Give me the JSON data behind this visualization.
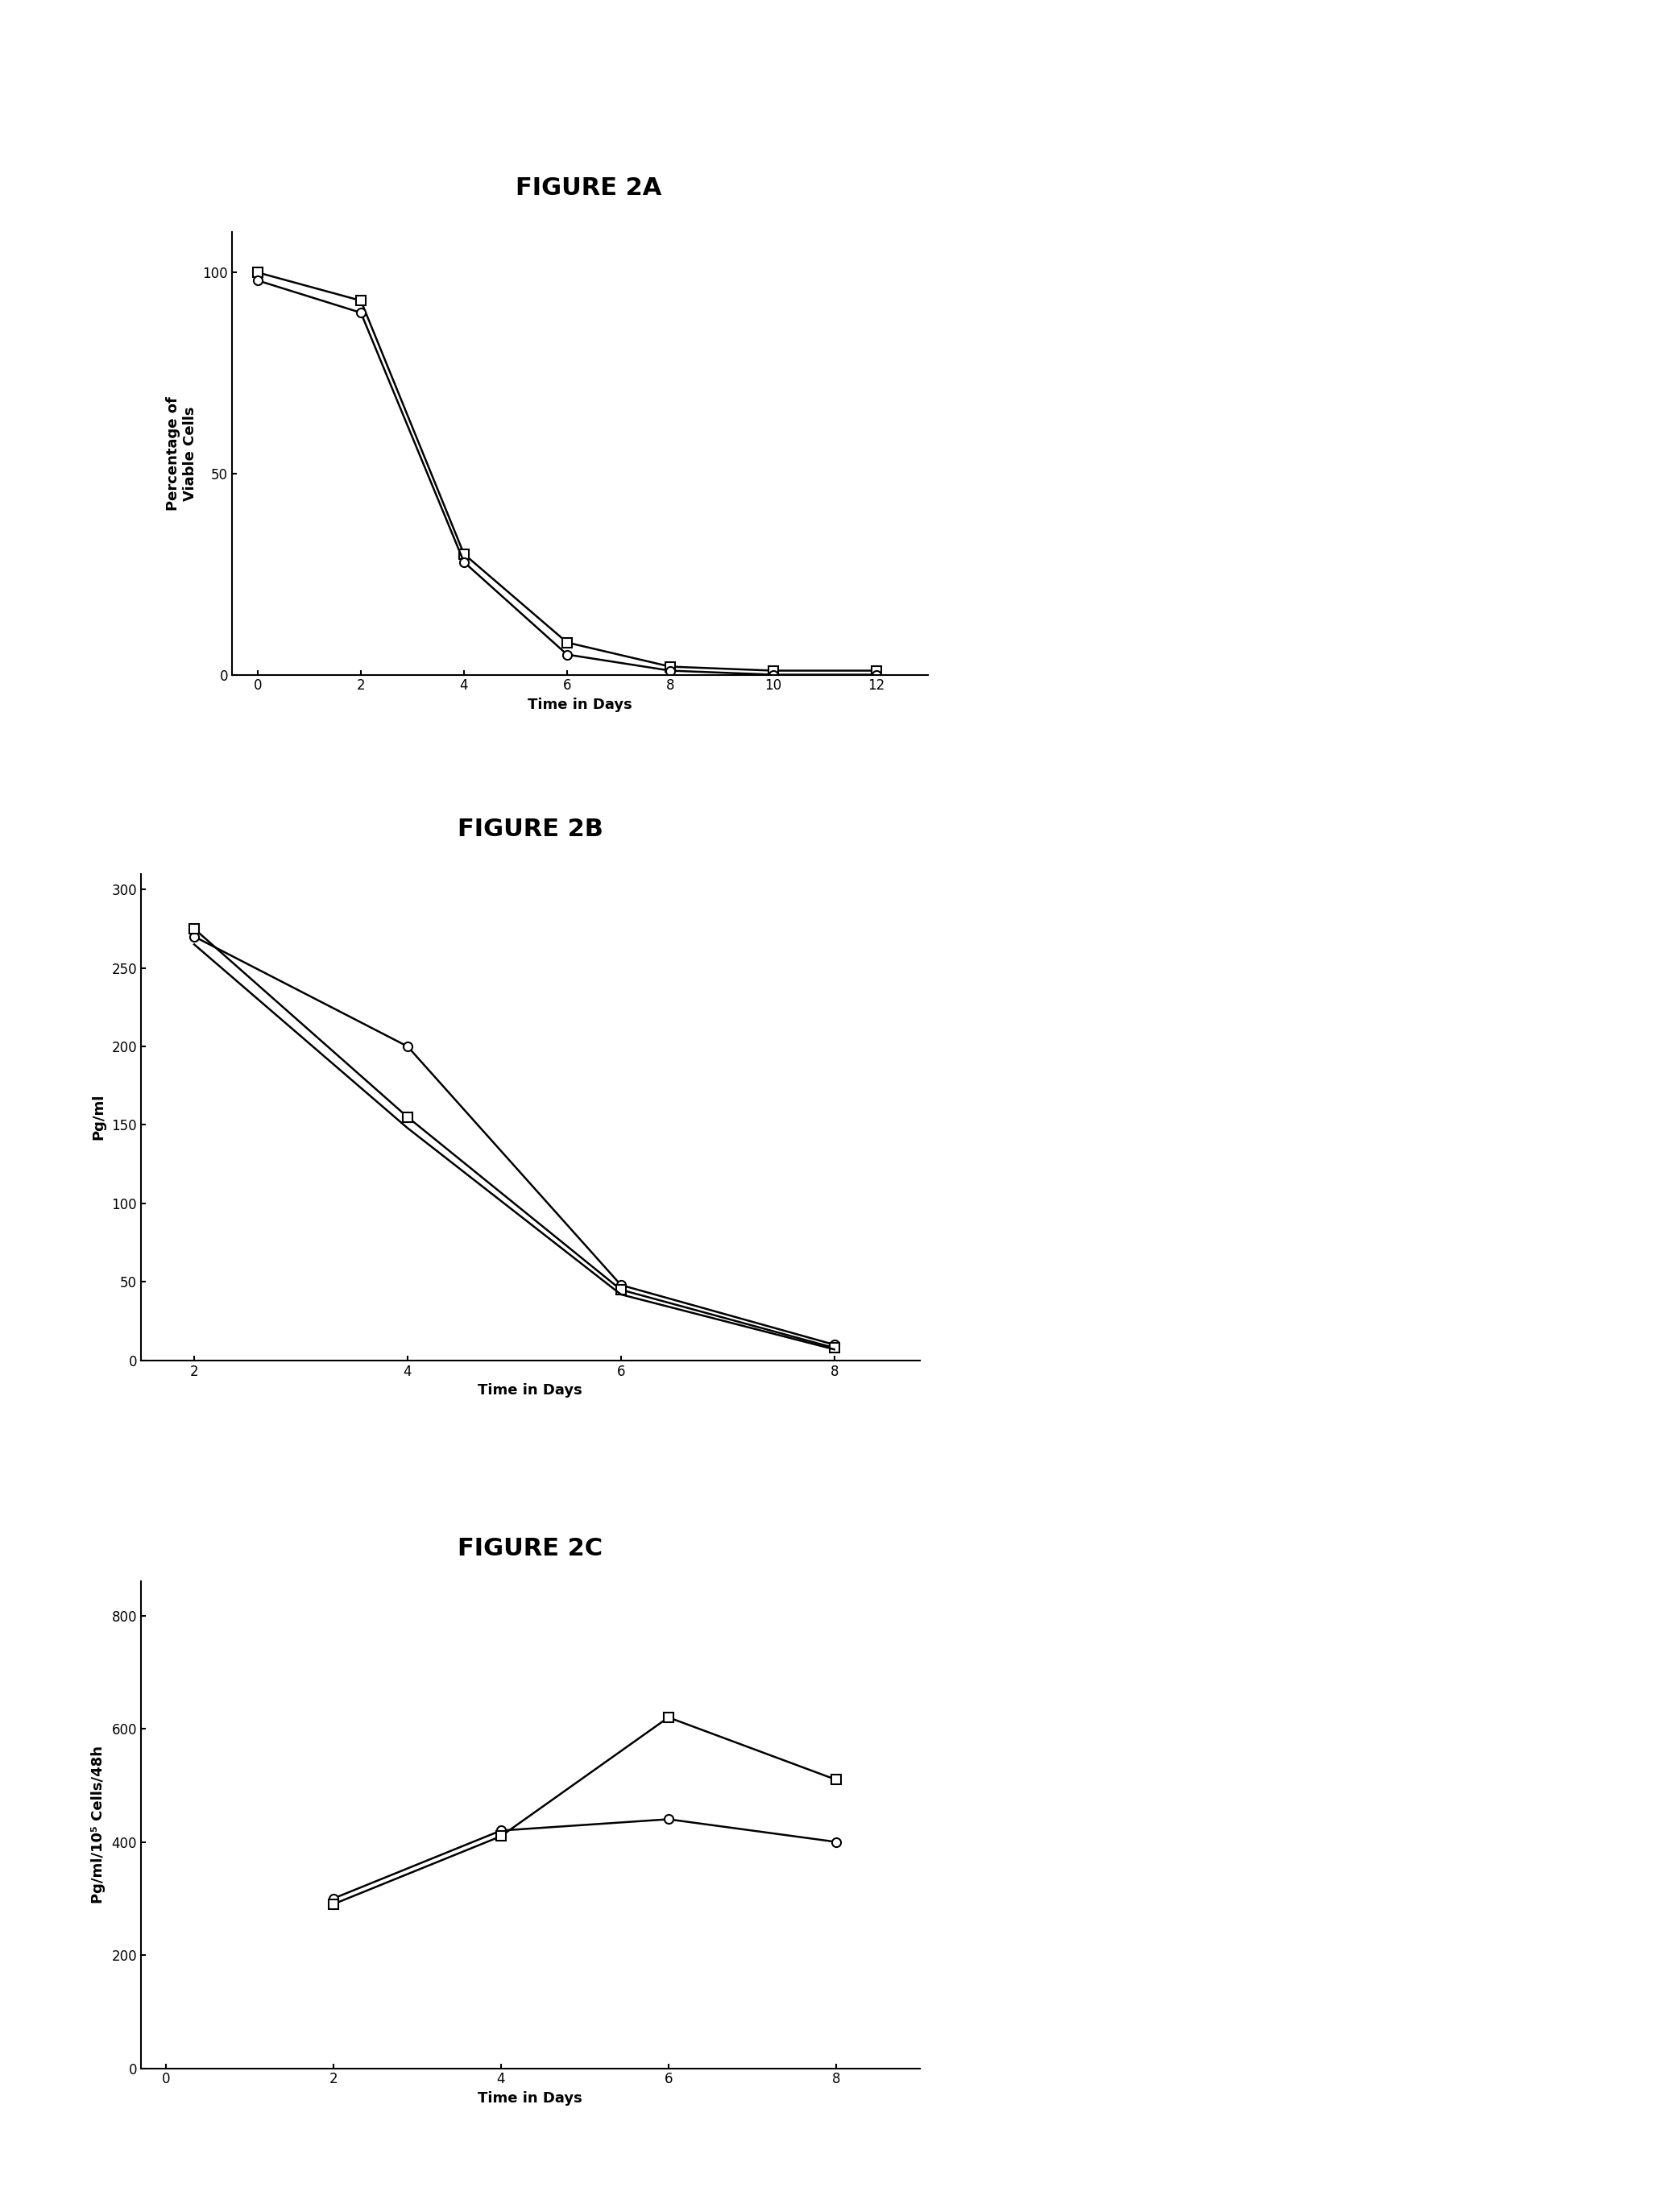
{
  "fig2a": {
    "title": "FIGURE 2A",
    "xlabel": "Time in Days",
    "ylabel": "Percentage of\nViable Cells",
    "series1": {
      "x": [
        0,
        2,
        4,
        6,
        8,
        10,
        12
      ],
      "y": [
        100,
        93,
        30,
        8,
        2,
        1,
        1
      ],
      "marker": "s"
    },
    "series2": {
      "x": [
        0,
        2,
        4,
        6,
        8,
        10,
        12
      ],
      "y": [
        98,
        90,
        28,
        5,
        1,
        0,
        0
      ],
      "marker": "o"
    },
    "xlim": [
      -0.5,
      13
    ],
    "ylim": [
      0,
      110
    ],
    "xticks": [
      0,
      2,
      4,
      6,
      8,
      10,
      12
    ],
    "yticks": [
      0,
      50,
      100
    ]
  },
  "fig2b": {
    "title": "FIGURE 2B",
    "xlabel": "Time in Days",
    "ylabel": "Pg/ml",
    "series1": {
      "x": [
        2,
        4,
        6,
        8
      ],
      "y": [
        270,
        200,
        48,
        10
      ],
      "marker": "o"
    },
    "series2": {
      "x": [
        2,
        4,
        6,
        8
      ],
      "y": [
        275,
        155,
        45,
        8
      ],
      "marker": "s"
    },
    "series3": {
      "x": [
        2,
        4,
        6,
        8
      ],
      "y": [
        265,
        148,
        42,
        7
      ],
      "marker": null
    },
    "xlim": [
      1.5,
      8.8
    ],
    "ylim": [
      0,
      310
    ],
    "xticks": [
      2,
      4,
      6,
      8
    ],
    "yticks": [
      0,
      50,
      100,
      150,
      200,
      250,
      300
    ]
  },
  "fig2c": {
    "title": "FIGURE 2C",
    "xlabel": "Time in Days",
    "ylabel": "Pg/ml/10⁵ Cells/48h",
    "series1": {
      "x": [
        2,
        4,
        6,
        8
      ],
      "y": [
        300,
        420,
        440,
        400
      ],
      "marker": "o"
    },
    "series2": {
      "x": [
        2,
        4,
        6,
        8
      ],
      "y": [
        290,
        410,
        620,
        510
      ],
      "marker": "s"
    },
    "xlim": [
      -0.3,
      9
    ],
    "ylim": [
      0,
      860
    ],
    "xticks": [
      0,
      2,
      4,
      6,
      8
    ],
    "yticks": [
      0,
      200,
      400,
      600,
      800
    ]
  },
  "line_color": "#000000",
  "marker_size": 8,
  "line_width": 1.8,
  "title_fontsize": 22,
  "label_fontsize": 13,
  "tick_fontsize": 12,
  "background_color": "#ffffff"
}
